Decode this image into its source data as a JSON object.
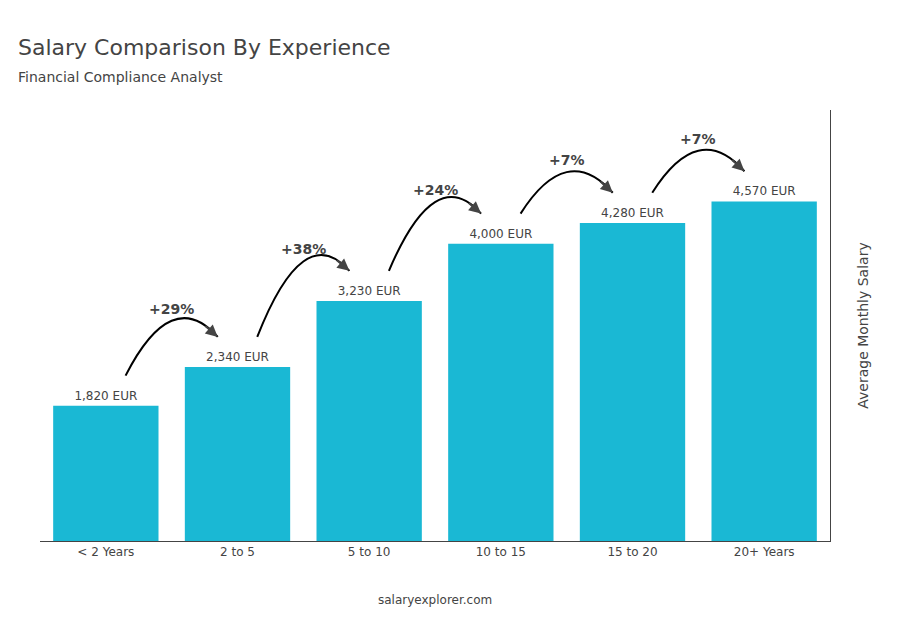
{
  "chart_data": {
    "type": "bar",
    "title": "Salary Comparison By Experience",
    "subtitle": "Financial Compliance Analyst",
    "categories": [
      "< 2 Years",
      "2 to 5",
      "5 to 10",
      "10 to 15",
      "15 to 20",
      "20+ Years"
    ],
    "values": [
      1820,
      2340,
      3230,
      4000,
      4280,
      4570
    ],
    "value_labels": [
      "1,820 EUR",
      "2,340 EUR",
      "3,230 EUR",
      "4,000 EUR",
      "4,280 EUR",
      "4,570 EUR"
    ],
    "data_labels": true,
    "annotations": [
      "+29%",
      "+38%",
      "+24%",
      "+7%",
      "+7%"
    ],
    "ylabel": "Average Monthly Salary",
    "footer": "salaryexplorer.com",
    "color": "#1ab8d4",
    "ylim": [
      0,
      5800
    ],
    "grid": false,
    "tick_labels": "x"
  }
}
